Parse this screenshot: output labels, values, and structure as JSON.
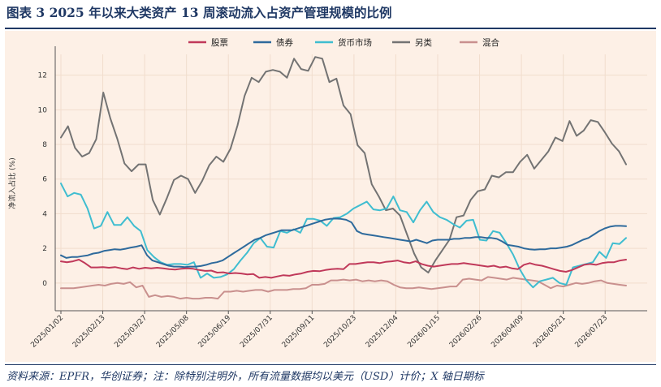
{
  "header": {
    "title": "图表 3    2025 年以来大类资产 13 周滚动流入占资产管理规模的比例"
  },
  "footer": {
    "source": "资料来源：EPFR，华创证券；注：除特别注明外，所有流量数据均以美元（USD）计价；X 轴日期标"
  },
  "chart_data": {
    "type": "line",
    "ylabel": "净流入占比 (%)",
    "ylim": [
      -1.6,
      13.2
    ],
    "yticks": [
      0,
      2,
      4,
      6,
      8,
      10,
      12
    ],
    "x_tick_labels": [
      "2025/01/02",
      "2025/02/13",
      "2025/03/27",
      "2025/05/08",
      "2025/06/19",
      "2025/07/31",
      "2025/09/11",
      "2025/10/23",
      "2025/12/04",
      "2026/01/15",
      "2026/02/26",
      "2026/04/09",
      "2026/05/21",
      "2026/07/23"
    ],
    "x_start": "2025/01/02",
    "x_step_weeks": 1,
    "grid": true,
    "legend_position": "top",
    "colors": {
      "background": "#fdf0e6",
      "grid": "#f1ddcd"
    },
    "series": [
      {
        "name": "股票",
        "color": "#c0395a",
        "values": [
          1.25,
          1.2,
          1.25,
          1.35,
          1.15,
          0.9,
          0.9,
          0.92,
          0.88,
          0.92,
          0.85,
          0.8,
          0.9,
          0.82,
          0.88,
          0.85,
          0.88,
          0.85,
          0.8,
          0.78,
          0.82,
          0.85,
          0.82,
          0.75,
          0.7,
          0.72,
          0.6,
          0.62,
          0.55,
          0.58,
          0.55,
          0.5,
          0.52,
          0.3,
          0.35,
          0.3,
          0.38,
          0.45,
          0.42,
          0.5,
          0.55,
          0.65,
          0.7,
          0.68,
          0.75,
          0.8,
          0.82,
          0.8,
          1.1,
          1.1,
          1.15,
          1.2,
          1.2,
          1.15,
          1.22,
          1.25,
          1.3,
          1.2,
          1.15,
          1.25,
          1.1,
          1.0,
          0.95,
          1.0,
          1.05,
          1.1,
          1.1,
          1.15,
          1.1,
          1.05,
          1.0,
          0.95,
          1.0,
          0.9,
          0.95,
          0.85,
          0.8,
          1.05,
          1.15,
          1.05,
          1.0,
          0.9,
          0.8,
          0.7,
          0.65,
          0.75,
          0.9,
          1.05,
          1.1,
          1.05,
          1.15,
          1.2,
          1.2,
          1.3,
          1.35
        ]
      },
      {
        "name": "债券",
        "color": "#2e6a9c",
        "values": [
          1.6,
          1.45,
          1.5,
          1.5,
          1.55,
          1.6,
          1.7,
          1.75,
          1.85,
          1.9,
          1.95,
          1.92,
          1.98,
          2.05,
          2.1,
          2.18,
          1.6,
          1.3,
          1.2,
          1.1,
          1.0,
          0.95,
          0.95,
          0.92,
          0.95,
          0.95,
          0.98,
          1.05,
          1.15,
          1.2,
          1.3,
          1.5,
          1.7,
          1.9,
          2.1,
          2.3,
          2.5,
          2.6,
          2.75,
          2.85,
          2.95,
          3.05,
          3.05,
          3.05,
          3.15,
          3.25,
          3.35,
          3.45,
          3.55,
          3.65,
          3.7,
          3.72,
          3.7,
          3.65,
          3.5,
          3.0,
          2.85,
          2.8,
          2.75,
          2.7,
          2.65,
          2.6,
          2.55,
          2.5,
          2.45,
          2.4,
          2.5,
          2.4,
          2.3,
          2.45,
          2.5,
          2.5,
          2.5,
          2.55,
          2.55,
          2.6,
          2.6,
          2.65,
          2.65,
          2.6,
          2.6,
          2.55,
          2.4,
          2.2,
          2.15,
          2.1,
          2.0,
          1.95,
          1.92,
          1.95,
          1.95,
          2.0,
          2.0,
          2.05,
          2.1,
          2.2,
          2.35,
          2.5,
          2.6,
          2.8,
          3.0,
          3.15,
          3.25,
          3.3,
          3.3,
          3.28
        ]
      },
      {
        "name": "货币市场",
        "color": "#3fbdd0",
        "values": [
          5.75,
          5.0,
          5.2,
          5.1,
          4.3,
          3.15,
          3.3,
          4.1,
          3.35,
          3.35,
          3.8,
          3.3,
          3.0,
          1.9,
          1.5,
          1.2,
          1.05,
          1.1,
          1.1,
          1.05,
          1.2,
          0.3,
          0.55,
          0.3,
          0.35,
          0.5,
          0.8,
          1.3,
          1.75,
          2.3,
          2.6,
          2.1,
          2.05,
          3.0,
          2.9,
          3.1,
          2.9,
          3.7,
          3.7,
          3.6,
          3.3,
          3.75,
          3.8,
          4.0,
          4.3,
          4.5,
          4.7,
          4.25,
          4.2,
          4.3,
          5.0,
          4.2,
          4.1,
          3.5,
          4.2,
          4.7,
          4.1,
          3.8,
          3.65,
          3.4,
          3.2,
          3.6,
          3.65,
          2.5,
          2.45,
          3.0,
          2.9,
          2.3,
          1.65,
          0.8,
          0.15,
          -0.25,
          0.1,
          0.2,
          0.3,
          0.0,
          -0.1,
          0.9,
          1.0,
          1.1,
          1.2,
          1.8,
          1.45,
          2.3,
          2.25,
          2.6
        ]
      },
      {
        "name": "另类",
        "color": "#737373",
        "values": [
          8.4,
          9.05,
          7.8,
          7.3,
          7.5,
          8.3,
          11.0,
          9.5,
          8.3,
          6.9,
          6.45,
          6.85,
          6.85,
          4.8,
          3.95,
          4.9,
          5.95,
          6.2,
          6.0,
          5.2,
          5.9,
          6.8,
          7.3,
          7.0,
          7.75,
          9.1,
          10.8,
          11.85,
          11.6,
          12.2,
          12.3,
          12.2,
          11.85,
          12.95,
          12.35,
          12.25,
          13.05,
          12.95,
          11.6,
          11.8,
          10.25,
          9.75,
          7.95,
          7.5,
          5.7,
          5.0,
          4.2,
          4.3,
          3.9,
          2.8,
          1.7,
          0.9,
          0.6,
          1.3,
          1.9,
          2.5,
          3.8,
          3.9,
          4.8,
          5.3,
          5.4,
          6.2,
          6.1,
          6.4,
          6.4,
          7.0,
          7.4,
          6.6,
          7.1,
          7.6,
          8.4,
          8.2,
          9.35,
          8.5,
          8.8,
          9.4,
          9.3,
          8.7,
          8.05,
          7.6,
          6.85
        ]
      },
      {
        "name": "混合",
        "color": "#c9908e",
        "values": [
          -0.3,
          -0.3,
          -0.3,
          -0.25,
          -0.2,
          -0.15,
          -0.1,
          -0.15,
          -0.05,
          0.0,
          -0.05,
          0.05,
          -0.25,
          -0.15,
          -0.8,
          -0.7,
          -0.8,
          -0.75,
          -0.8,
          -0.9,
          -0.85,
          -0.9,
          -0.9,
          -0.85,
          -0.85,
          -0.9,
          -0.5,
          -0.5,
          -0.45,
          -0.5,
          -0.45,
          -0.4,
          -0.4,
          -0.5,
          -0.4,
          -0.4,
          -0.4,
          -0.35,
          -0.35,
          -0.3,
          -0.1,
          -0.1,
          -0.05,
          0.15,
          0.15,
          0.2,
          0.15,
          0.2,
          0.1,
          0.15,
          0.1,
          0.15,
          0.1,
          -0.1,
          -0.25,
          -0.3,
          -0.3,
          -0.25,
          -0.3,
          -0.35,
          -0.3,
          -0.25,
          -0.2,
          -0.2,
          0.2,
          0.25,
          0.2,
          0.15,
          0.35,
          0.3,
          0.25,
          0.2,
          0.3,
          0.25,
          0.2,
          0.15,
          0.1,
          -0.1,
          -0.3,
          -0.15,
          -0.2,
          -0.1,
          0.0,
          -0.05,
          0.0,
          0.1,
          0.15,
          0.0,
          -0.05,
          -0.1,
          -0.15
        ]
      }
    ]
  }
}
